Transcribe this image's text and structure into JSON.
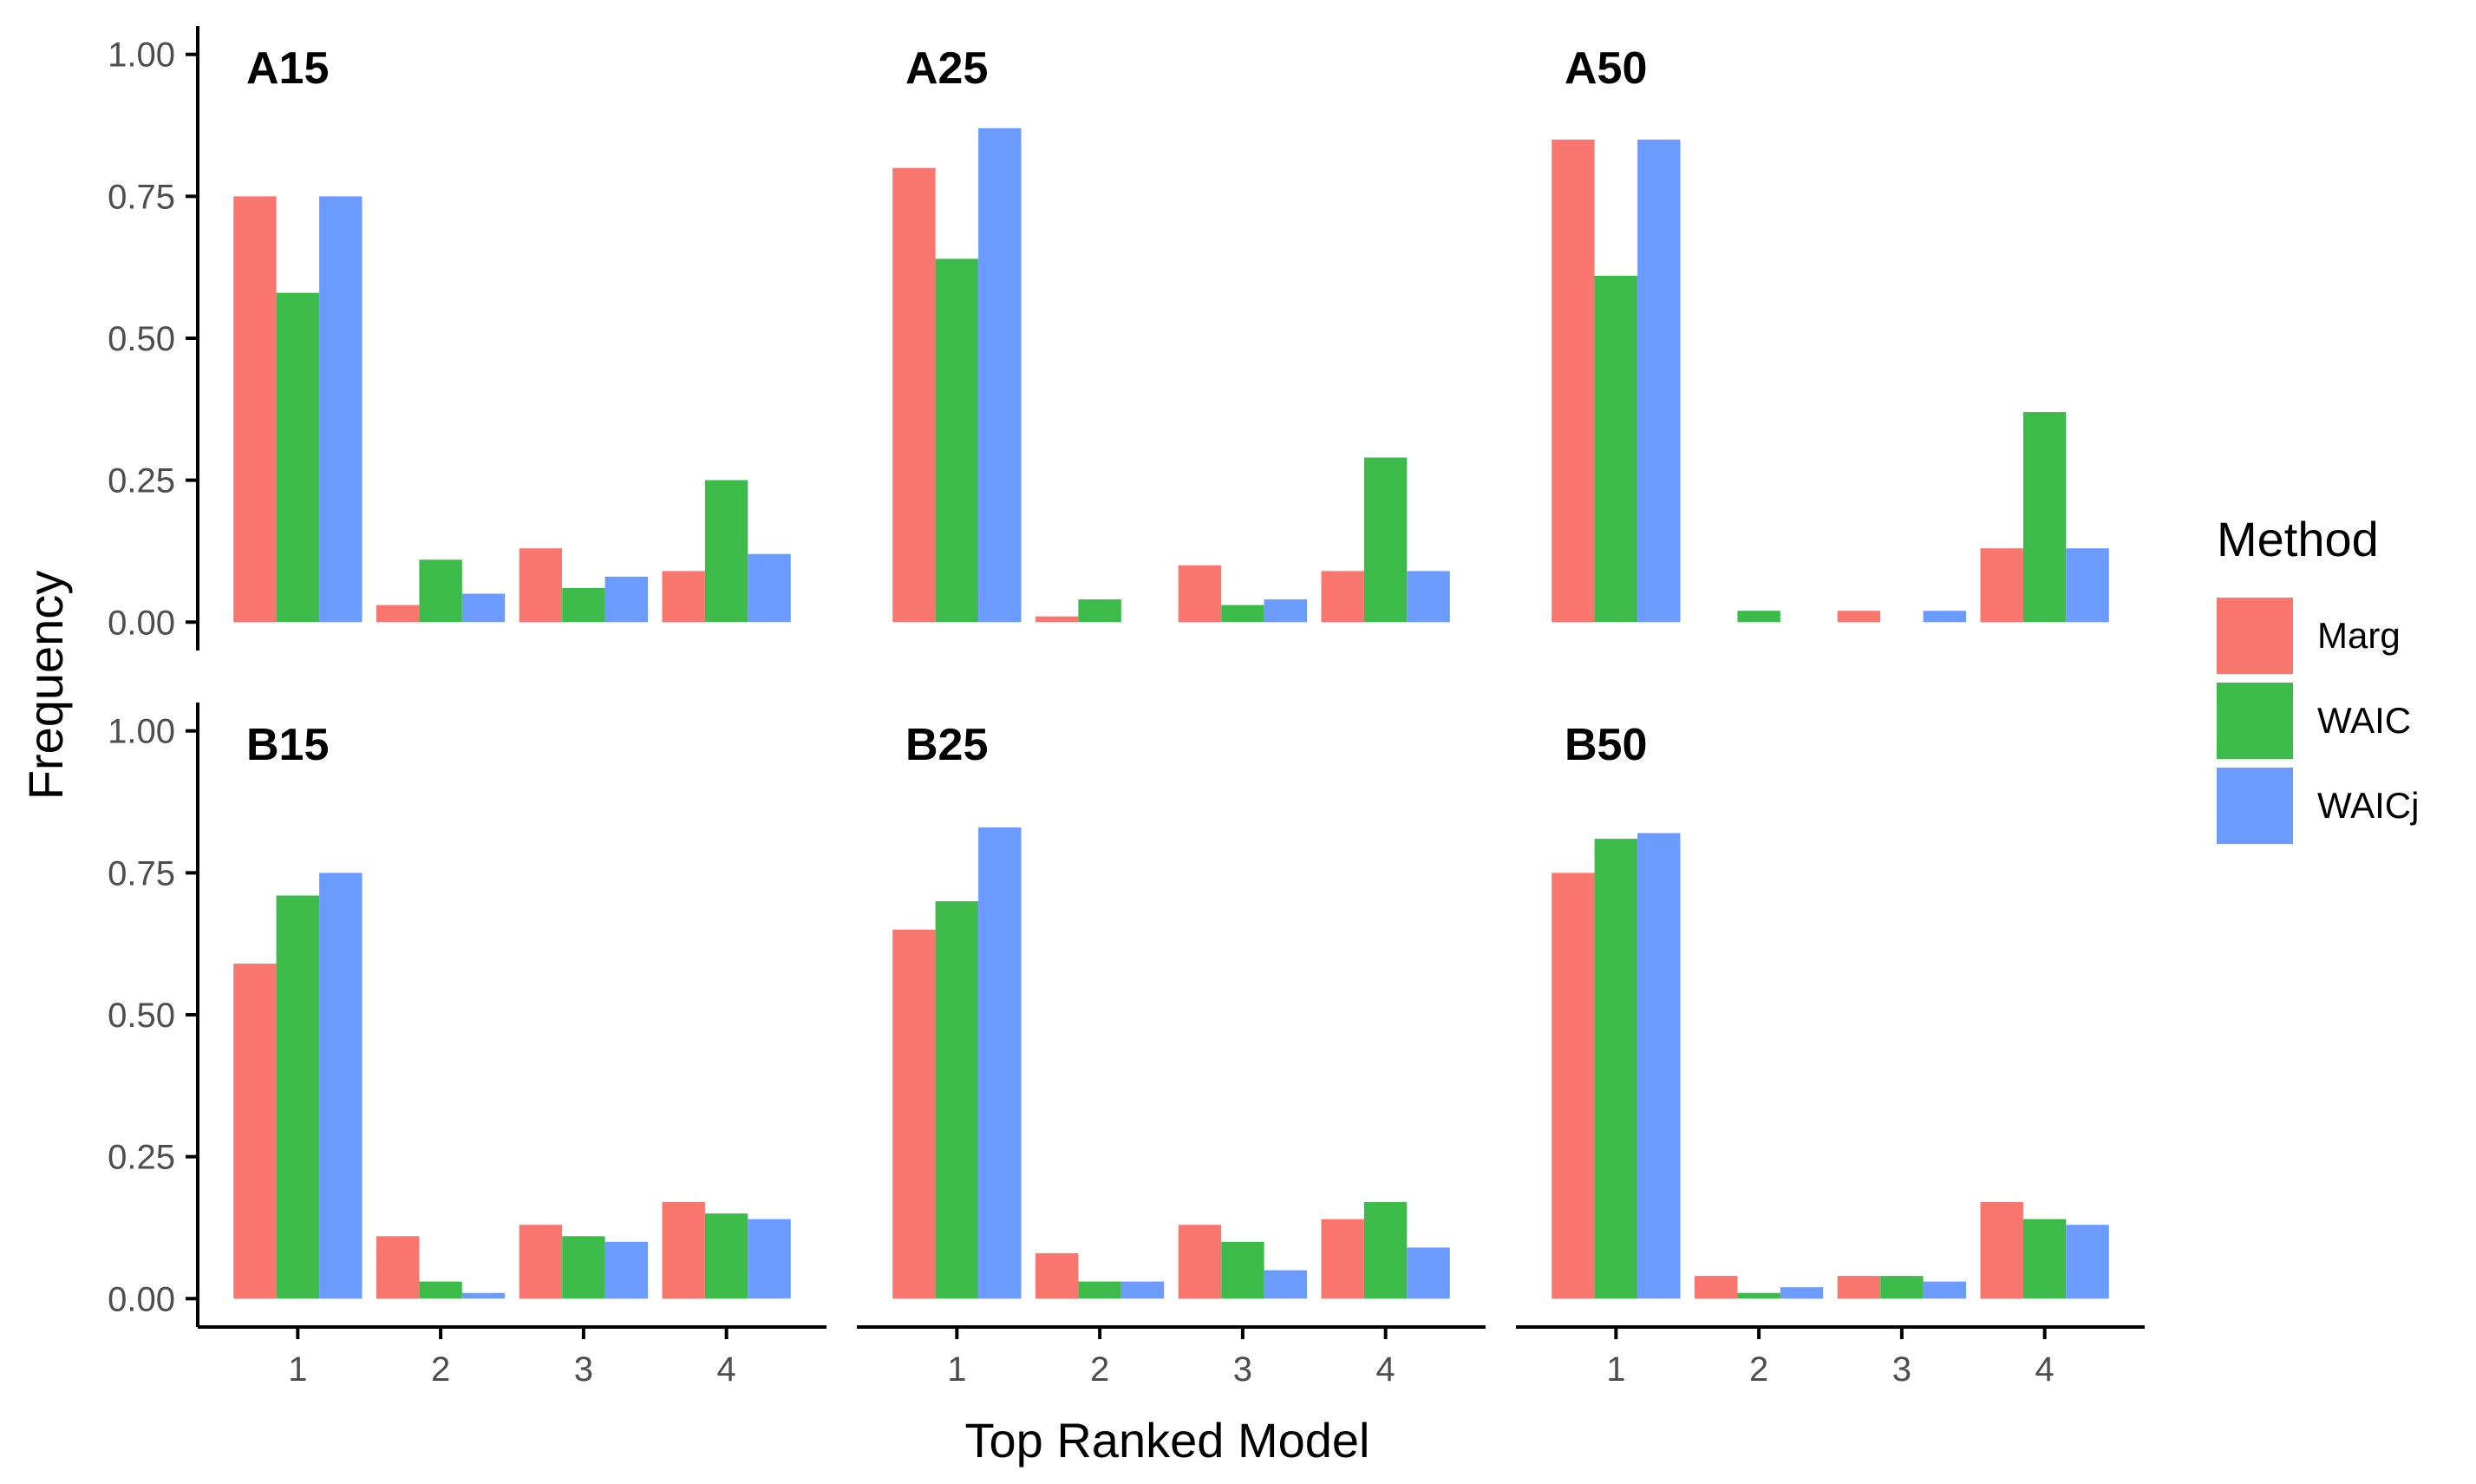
{
  "chart_data": {
    "type": "bar",
    "xlabel": "Top Ranked Model",
    "ylabel": "Frequency",
    "categories": [
      "1",
      "2",
      "3",
      "4"
    ],
    "yticks": [
      "0.00",
      "0.25",
      "0.50",
      "0.75",
      "1.00"
    ],
    "ylim": [
      0,
      1.0
    ],
    "grid": false,
    "legend": {
      "title": "Method",
      "placement": "right",
      "entries": [
        {
          "name": "Marg",
          "color": "#F8766D"
        },
        {
          "name": "WAIC",
          "color": "#3CBB4A"
        },
        {
          "name": "WAICj",
          "color": "#6C9BFF"
        }
      ]
    },
    "panels": [
      {
        "title": "A15",
        "series": [
          {
            "name": "Marg",
            "values": [
              0.75,
              0.03,
              0.13,
              0.09
            ]
          },
          {
            "name": "WAIC",
            "values": [
              0.58,
              0.11,
              0.06,
              0.25
            ]
          },
          {
            "name": "WAICj",
            "values": [
              0.75,
              0.05,
              0.08,
              0.12
            ]
          }
        ]
      },
      {
        "title": "A25",
        "series": [
          {
            "name": "Marg",
            "values": [
              0.8,
              0.01,
              0.1,
              0.09
            ]
          },
          {
            "name": "WAIC",
            "values": [
              0.64,
              0.04,
              0.03,
              0.29
            ]
          },
          {
            "name": "WAICj",
            "values": [
              0.87,
              0.0,
              0.04,
              0.09
            ]
          }
        ]
      },
      {
        "title": "A50",
        "series": [
          {
            "name": "Marg",
            "values": [
              0.85,
              0.0,
              0.02,
              0.13
            ]
          },
          {
            "name": "WAIC",
            "values": [
              0.61,
              0.02,
              0.0,
              0.37
            ]
          },
          {
            "name": "WAICj",
            "values": [
              0.85,
              0.0,
              0.02,
              0.13
            ]
          }
        ]
      },
      {
        "title": "B15",
        "series": [
          {
            "name": "Marg",
            "values": [
              0.59,
              0.11,
              0.13,
              0.17
            ]
          },
          {
            "name": "WAIC",
            "values": [
              0.71,
              0.03,
              0.11,
              0.15
            ]
          },
          {
            "name": "WAICj",
            "values": [
              0.75,
              0.01,
              0.1,
              0.14
            ]
          }
        ]
      },
      {
        "title": "B25",
        "series": [
          {
            "name": "Marg",
            "values": [
              0.65,
              0.08,
              0.13,
              0.14
            ]
          },
          {
            "name": "WAIC",
            "values": [
              0.7,
              0.03,
              0.1,
              0.17
            ]
          },
          {
            "name": "WAICj",
            "values": [
              0.83,
              0.03,
              0.05,
              0.09
            ]
          }
        ]
      },
      {
        "title": "B50",
        "series": [
          {
            "name": "Marg",
            "values": [
              0.75,
              0.04,
              0.04,
              0.17
            ]
          },
          {
            "name": "WAIC",
            "values": [
              0.81,
              0.01,
              0.04,
              0.14
            ]
          },
          {
            "name": "WAICj",
            "values": [
              0.82,
              0.02,
              0.03,
              0.13
            ]
          }
        ]
      }
    ]
  }
}
